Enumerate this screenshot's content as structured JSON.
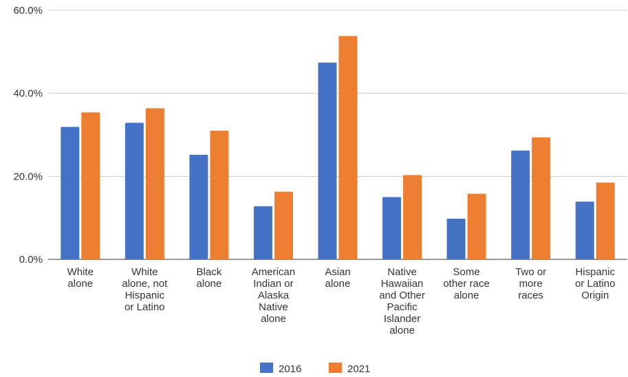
{
  "chart_data": {
    "type": "bar",
    "title": "",
    "xlabel": "",
    "ylabel": "",
    "ylim": [
      0,
      60
    ],
    "y_ticks": [
      "0.0%",
      "20.0%",
      "40.0%",
      "60.0%"
    ],
    "grid": true,
    "legend_position": "bottom",
    "categories": [
      [
        "White",
        "alone"
      ],
      [
        "White",
        "alone, not",
        "Hispanic",
        "or Latino"
      ],
      [
        "Black",
        "alone"
      ],
      [
        "American",
        "Indian or",
        "Alaska",
        "Native",
        "alone"
      ],
      [
        "Asian",
        "alone"
      ],
      [
        "Native",
        "Hawaiian",
        "and Other",
        "Pacific",
        "Islander",
        "alone"
      ],
      [
        "Some",
        "other race",
        "alone"
      ],
      [
        "Two or",
        "more",
        "races"
      ],
      [
        "Hispanic",
        "or Latino",
        "Origin"
      ]
    ],
    "series": [
      {
        "name": "2016",
        "color": "#4472C4",
        "values": [
          31.9,
          32.9,
          25.2,
          12.8,
          47.4,
          15.0,
          9.8,
          26.2,
          13.9
        ]
      },
      {
        "name": "2021",
        "color": "#ED7D31",
        "values": [
          35.4,
          36.4,
          31.0,
          16.3,
          53.8,
          20.3,
          15.8,
          29.4,
          18.5
        ]
      }
    ]
  }
}
